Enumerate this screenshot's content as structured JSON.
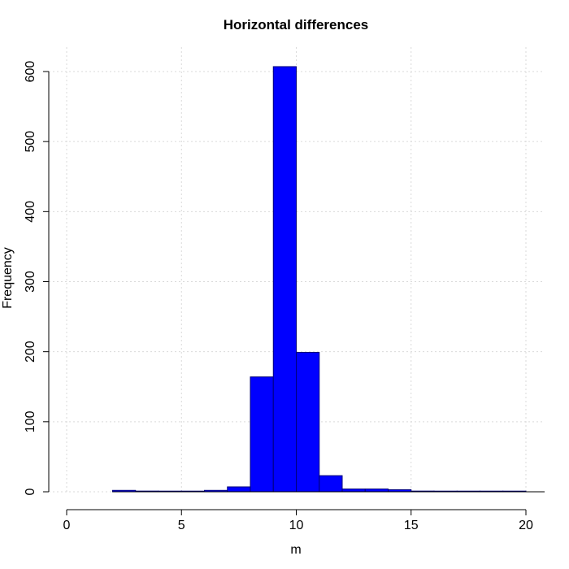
{
  "chart_data": {
    "type": "bar",
    "title": "Horizontal differences",
    "xlabel": "m",
    "ylabel": "Frequency",
    "xlim": [
      0,
      20
    ],
    "ylim": [
      0,
      600
    ],
    "xticks": [
      0,
      5,
      10,
      15,
      20
    ],
    "yticks": [
      0,
      100,
      200,
      300,
      400,
      500,
      600
    ],
    "grid": true,
    "bar_color": "#0000ff",
    "bins": [
      {
        "x0": 2,
        "x1": 3,
        "value": 2
      },
      {
        "x0": 3,
        "x1": 4,
        "value": 1
      },
      {
        "x0": 4,
        "x1": 5,
        "value": 0
      },
      {
        "x0": 5,
        "x1": 6,
        "value": 0
      },
      {
        "x0": 6,
        "x1": 7,
        "value": 2
      },
      {
        "x0": 7,
        "x1": 8,
        "value": 7
      },
      {
        "x0": 8,
        "x1": 9,
        "value": 164
      },
      {
        "x0": 9,
        "x1": 10,
        "value": 607
      },
      {
        "x0": 10,
        "x1": 11,
        "value": 199
      },
      {
        "x0": 11,
        "x1": 12,
        "value": 23
      },
      {
        "x0": 12,
        "x1": 13,
        "value": 4
      },
      {
        "x0": 13,
        "x1": 14,
        "value": 4
      },
      {
        "x0": 14,
        "x1": 15,
        "value": 3
      },
      {
        "x0": 15,
        "x1": 16,
        "value": 1
      },
      {
        "x0": 16,
        "x1": 17,
        "value": 0
      },
      {
        "x0": 17,
        "x1": 18,
        "value": 0
      },
      {
        "x0": 18,
        "x1": 19,
        "value": 0
      },
      {
        "x0": 19,
        "x1": 20,
        "value": 0
      }
    ]
  }
}
